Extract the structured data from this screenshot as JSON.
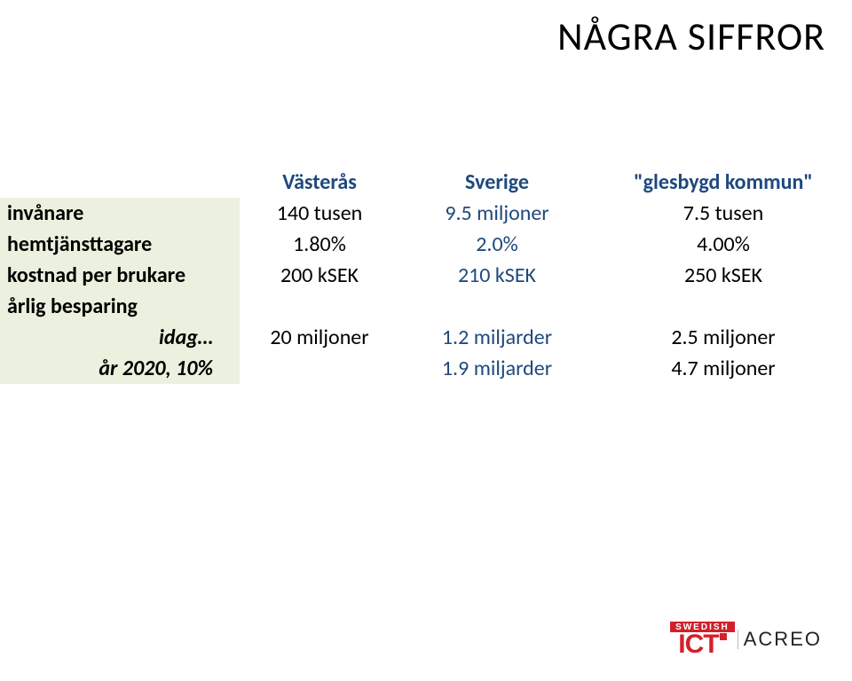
{
  "title": "NÅGRA SIFFROR",
  "colors": {
    "shade_bg": "#ebf1de",
    "header_text": "#1f497d",
    "body_text": "#000000",
    "logo_red": "#d4202c",
    "background": "#ffffff"
  },
  "fontsize": {
    "title": 44,
    "cell": 24
  },
  "table": {
    "columns": {
      "label": "",
      "vasteras": "Västerås",
      "sverige": "Sverige",
      "glesbygd": "\"glesbygd kommun\""
    },
    "rows": [
      {
        "label": "invånare",
        "v": "140 tusen",
        "s": "9.5 miljoner",
        "g": "7.5 tusen"
      },
      {
        "label": "hemtjänsttagare",
        "v": "1.80%",
        "s": "2.0%",
        "g": "4.00%"
      },
      {
        "label": "kostnad per brukare",
        "v": "200 kSEK",
        "s": "210 kSEK",
        "g": "250 kSEK"
      },
      {
        "label": "årlig besparing",
        "v": "",
        "s": "",
        "g": ""
      },
      {
        "label": "idag…",
        "v": "20 miljoner",
        "s": "1.2 miljarder",
        "g": "2.5 miljoner"
      },
      {
        "label": "år 2020, 10%",
        "v": "",
        "s": "1.9 miljarder",
        "g": "4.7 miljoner"
      }
    ]
  },
  "logo": {
    "swedish": "SWEDISH",
    "ict": "ICT",
    "acreo": "ACREO"
  }
}
